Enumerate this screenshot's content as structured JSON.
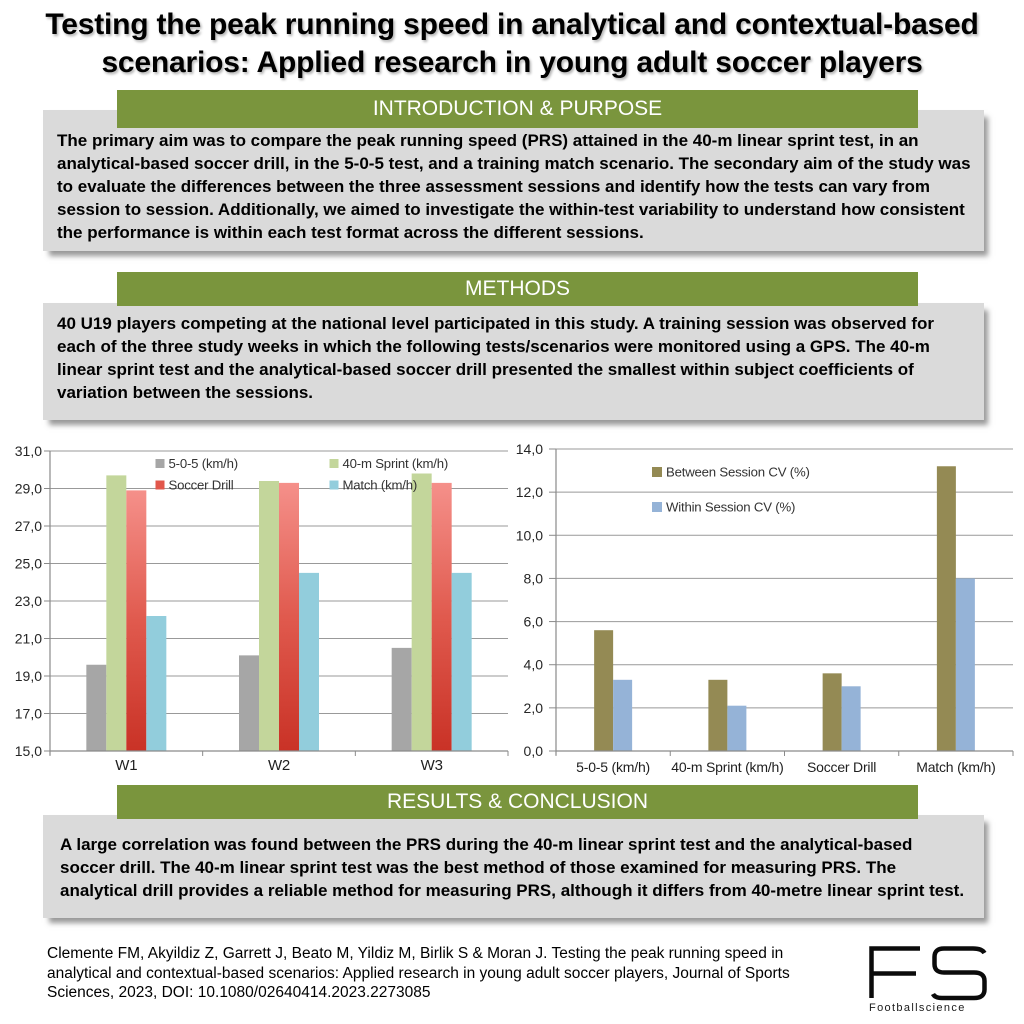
{
  "title": {
    "line1": "Testing the peak running speed in analytical and contextual-based",
    "line2": "scenarios: Applied research in young adult soccer players"
  },
  "colors": {
    "header_green": "#7A953D",
    "box_gray": "#DADADA",
    "grid_gray": "#999999",
    "axis_gray": "#8A8A8A"
  },
  "sections": [
    {
      "header": "INTRODUCTION & PURPOSE",
      "lines": [
        "The primary aim was to compare the peak running speed (PRS) attained in the 40-m linear sprint test, in an",
        "analytical-based soccer drill, in the 5-0-5 test, and a training match scenario. The secondary aim of the study was",
        "to evaluate the differences between the three assessment sessions and identify how the tests can vary from",
        "session to session. Additionally, we aimed to investigate the within-test variability to understand how consistent",
        "the performance is within each test format across the different sessions."
      ]
    },
    {
      "header": "METHODS",
      "lines": [
        "40 U19 players competing at the national level participated in this study. A training session was observed for",
        "each of the three study weeks in which the following tests/scenarios were monitored using a GPS. The 40-m",
        "linear sprint test and the analytical-based soccer drill presented the smallest within subject coefficients of",
        "variation between the sessions."
      ]
    },
    {
      "header": "RESULTS & CONCLUSION",
      "lines": [
        "A large correlation was found between the PRS during the 40-m linear sprint test and the analytical-based",
        "soccer drill. The 40-m linear sprint test was the best method of those examined for measuring PRS. The",
        "analytical drill provides a reliable method for measuring PRS, although it differs from 40-metre linear sprint test."
      ]
    }
  ],
  "chart_data": [
    {
      "type": "bar",
      "title": "",
      "categories": [
        "W1",
        "W2",
        "W3"
      ],
      "series": [
        {
          "name": "5-0-5 (km/h)",
          "color": "#A6A6A6",
          "values": [
            19.6,
            20.1,
            20.5
          ]
        },
        {
          "name": "40-m Sprint (km/h)",
          "color": "#C3D69B",
          "values": [
            29.7,
            29.4,
            29.8
          ]
        },
        {
          "name": "Soccer Drill",
          "gradient": [
            "#F5908A",
            "#E05A4E",
            "#C93226"
          ],
          "legend_color": "#E2574B",
          "values": [
            28.9,
            29.3,
            29.3
          ]
        },
        {
          "name": "Match (km/h)",
          "color": "#92CDDC",
          "values": [
            22.2,
            24.5,
            24.5
          ]
        }
      ],
      "ylim": [
        15,
        31
      ],
      "ytick_step": 2,
      "decimal_comma": true,
      "grid": true,
      "legend_position": "top-inside-2col",
      "xlabel": "",
      "ylabel": ""
    },
    {
      "type": "bar",
      "title": "",
      "categories": [
        "5-0-5 (km/h)",
        "40-m Sprint (km/h)",
        "Soccer Drill",
        "Match (km/h)"
      ],
      "series": [
        {
          "name": "Between Session CV (%)",
          "color": "#948A54",
          "values": [
            5.6,
            3.3,
            3.6,
            13.2
          ]
        },
        {
          "name": "Within Session CV (%)",
          "color": "#95B3D7",
          "values": [
            3.3,
            2.1,
            3.0,
            8.0
          ]
        }
      ],
      "ylim": [
        0,
        14
      ],
      "ytick_step": 2,
      "decimal_comma": true,
      "grid": true,
      "legend_position": "top-inside-1col",
      "xlabel": "",
      "ylabel": ""
    }
  ],
  "footer": {
    "citation_lines": [
      "Clemente FM, Akyildiz Z, Garrett J, Beato M, Yildiz M, Birlik S & Moran J. Testing the peak running speed in",
      "analytical and contextual-based scenarios: Applied research in young adult soccer players, Journal of Sports",
      "Sciences, 2023, DOI: 10.1080/02640414.2023.2273085"
    ],
    "logo": {
      "text": "FS",
      "subtext": "Footballscience"
    }
  }
}
